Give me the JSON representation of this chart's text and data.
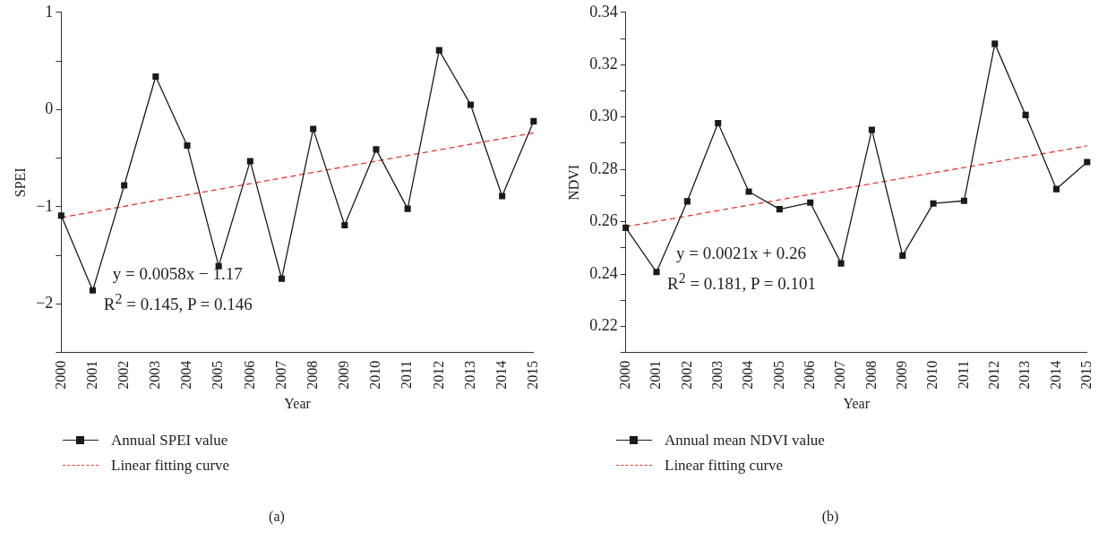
{
  "chart_data": [
    {
      "type": "line",
      "xlabel": "Year",
      "ylabel": "SPEI",
      "categories": [
        "2000",
        "2001",
        "2002",
        "2003",
        "2004",
        "2005",
        "2006",
        "2007",
        "2008",
        "2009",
        "2010",
        "2011",
        "2012",
        "2013",
        "2014",
        "2015"
      ],
      "series": [
        {
          "name": "Annual SPEI value",
          "color": "#1a1a1a",
          "marker": "square",
          "line_style": "solid",
          "values": [
            -1.09,
            -1.86,
            -0.78,
            0.34,
            -0.37,
            -1.61,
            -0.53,
            -1.74,
            -0.2,
            -1.19,
            -0.41,
            -1.02,
            0.61,
            0.05,
            -0.89,
            -0.12
          ]
        },
        {
          "name": "Linear fitting curve",
          "color": "#ee3333",
          "marker": "none",
          "line_style": "dashed",
          "values": [
            -1.11,
            null,
            null,
            null,
            null,
            null,
            null,
            null,
            null,
            null,
            null,
            null,
            null,
            null,
            null,
            -0.24
          ]
        }
      ],
      "ylim": [
        -2.5,
        1
      ],
      "yticks": [
        {
          "value": -2.5,
          "label": null
        },
        {
          "value": -2,
          "label": "−2"
        },
        {
          "value": -1.5,
          "label": null
        },
        {
          "value": -1,
          "label": "−1"
        },
        {
          "value": -0.5,
          "label": null
        },
        0,
        {
          "value": 0.5,
          "label": null
        },
        1
      ],
      "legend": "bottom",
      "annotations": [
        "y = 0.0058x − 1.17",
        "R$^{2}$ = 0.145, P = 0.146",
        "(a)"
      ]
    },
    {
      "type": "line",
      "xlabel": "Year",
      "ylabel": "NDVI",
      "categories": [
        "2000",
        "2001",
        "2002",
        "2003",
        "2004",
        "2005",
        "2006",
        "2007",
        "2008",
        "2009",
        "2010",
        "2011",
        "2012",
        "2013",
        "2014",
        "2015"
      ],
      "series": [
        {
          "name": "Annual mean NDVI value",
          "color": "#1a1a1a",
          "marker": "square",
          "line_style": "solid",
          "values": [
            0.2577,
            0.2408,
            0.2678,
            0.2977,
            0.2715,
            0.2648,
            0.2673,
            0.2441,
            0.2951,
            0.2471,
            0.267,
            0.268,
            0.328,
            0.3008,
            0.2725,
            0.2828
          ]
        },
        {
          "name": "Linear fitting curve",
          "color": "#ee3333",
          "marker": "none",
          "line_style": "dashed",
          "values": [
            0.2581,
            null,
            null,
            null,
            null,
            null,
            null,
            null,
            null,
            null,
            null,
            null,
            null,
            null,
            null,
            0.289
          ]
        }
      ],
      "ylim": [
        0.21,
        0.34
      ],
      "yticks": [
        {
          "value": 0.21,
          "label": null
        },
        0.22,
        {
          "value": 0.23,
          "label": null
        },
        0.24,
        {
          "value": 0.25,
          "label": null
        },
        0.26,
        {
          "value": 0.27,
          "label": null
        },
        0.28,
        {
          "value": 0.29,
          "label": null
        },
        {
          "value": 0.3,
          "label": "0.30"
        },
        {
          "value": 0.31,
          "label": null
        },
        0.32,
        {
          "value": 0.33,
          "label": null
        },
        0.34
      ],
      "legend": "bottom",
      "annotations": [
        "y = 0.0021x + 0.26",
        "R$^{2}$ = 0.181, P = 0.101",
        "(b)"
      ]
    }
  ]
}
